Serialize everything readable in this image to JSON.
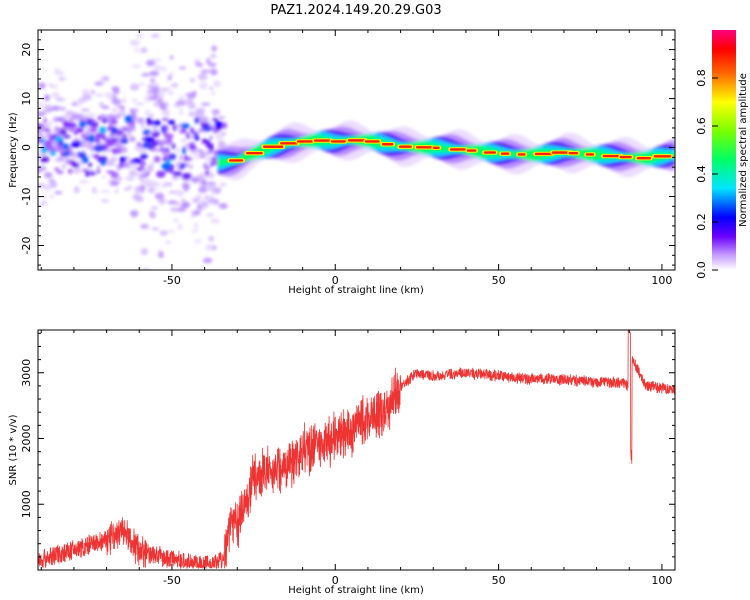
{
  "figure": {
    "title": "PAZ1.2024.149.20.29.G03"
  },
  "chart_data": [
    {
      "type": "heatmap",
      "xlabel": "Height of straight line (km)",
      "ylabel": "Frequency (Hz)",
      "xlim": [
        -91,
        104
      ],
      "ylim": [
        -25,
        24
      ],
      "xticks": [
        -50,
        0,
        50,
        100
      ],
      "yticks": [
        -20,
        -10,
        0,
        10,
        20
      ],
      "colorbar": {
        "label": "Normalized spectral amplitude",
        "range": [
          0,
          1
        ],
        "ticks": [
          "0.0",
          "0.2",
          "0.4",
          "0.6",
          "0.8"
        ],
        "colors": [
          "#ffffff",
          "#9b30ff",
          "#3a00ff",
          "#0000ff",
          "#00e5ff",
          "#00ff66",
          "#7cff00",
          "#ffff00",
          "#ff9900",
          "#ff0000",
          "#ff0080"
        ]
      },
      "ridge": {
        "x": [
          -35,
          -30,
          -25,
          -20,
          -15,
          -10,
          -5,
          0,
          5,
          10,
          15,
          20,
          30,
          40,
          50,
          60,
          70,
          80,
          90,
          95,
          104
        ],
        "y": [
          -3.0,
          -2.6,
          -1.2,
          0.0,
          0.8,
          1.2,
          1.5,
          1.2,
          1.5,
          1.4,
          0.8,
          0.2,
          0.0,
          -0.5,
          -1.2,
          -1.5,
          -1.0,
          -1.5,
          -2.0,
          -2.2,
          -1.5
        ]
      }
    },
    {
      "type": "line",
      "xlabel": "Height of straight line (km)",
      "ylabel": "SNR (10 * v/v)",
      "xlim": [
        -91,
        104
      ],
      "ylim": [
        0,
        3650
      ],
      "xticks": [
        -50,
        0,
        50,
        100
      ],
      "yticks": [
        1000,
        2000,
        3000
      ],
      "color": "#ee3333",
      "trend": {
        "x": [
          -91,
          -80,
          -70,
          -65,
          -60,
          -50,
          -40,
          -34,
          -32,
          -30,
          -25,
          -20,
          -15,
          -10,
          -5,
          0,
          5,
          10,
          15,
          20,
          25,
          30,
          40,
          50,
          60,
          70,
          80,
          88,
          90,
          91,
          95,
          104
        ],
        "y": [
          150,
          300,
          450,
          600,
          300,
          150,
          80,
          150,
          800,
          650,
          1400,
          1500,
          1600,
          1800,
          1900,
          2000,
          2100,
          2300,
          2400,
          2800,
          3000,
          2950,
          3000,
          2950,
          2900,
          2900,
          2850,
          2850,
          2800,
          3200,
          2800,
          2750
        ]
      },
      "features": [
        {
          "x": 90,
          "y": 3650
        },
        {
          "x": 90.5,
          "y": 1600
        }
      ]
    }
  ]
}
